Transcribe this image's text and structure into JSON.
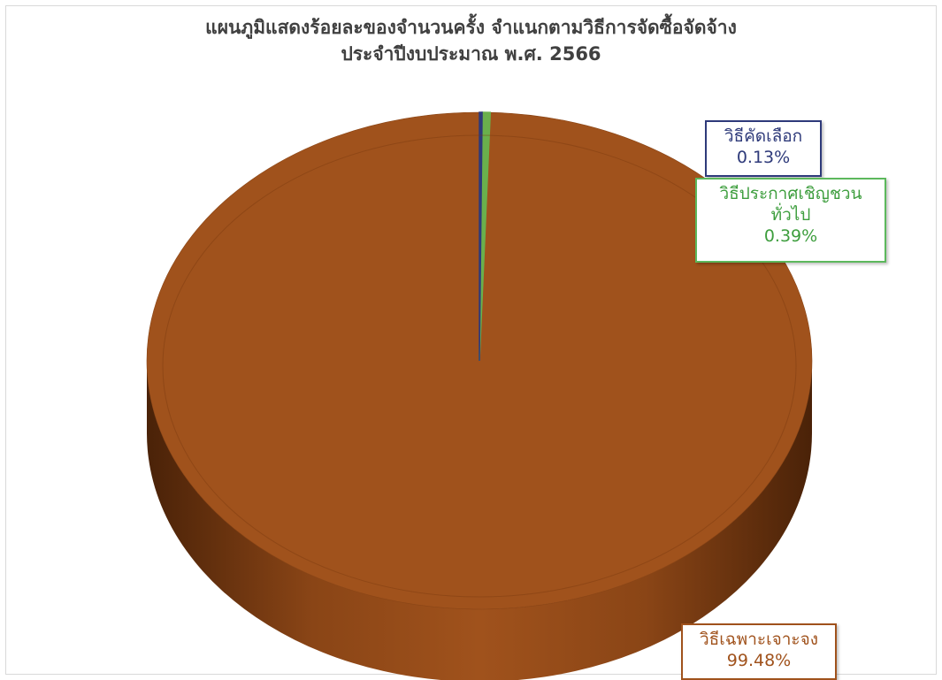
{
  "title_lines": [
    "แผนภูมิแสดงร้อยละของจำนวนครั้ง จำแนกตามวิธีการจัดซื้อจัดจ้าง",
    "ประจำปีงบประมาณ พ.ศ. 2566"
  ],
  "chart_data": {
    "type": "pie",
    "title": "แผนภูมิแสดงร้อยละของจำนวนครั้ง จำแนกตามวิธีการจัดซื้อจัดจ้าง ประจำปีงบประมาณ พ.ศ. 2566",
    "style": "3d",
    "slices": [
      {
        "label": "วิธีคัดเลือก",
        "value": 0.13,
        "display": "0.13%",
        "color": "#2e3a7a"
      },
      {
        "label": "วิธีประกาศเชิญชวนทั่วไป",
        "value": 0.39,
        "display": "0.39%",
        "color": "#6ab04c"
      },
      {
        "label": "วิธีเฉพาะเจาะจง",
        "value": 99.48,
        "display": "99.48%",
        "color": "#a0521c"
      }
    ],
    "legend": "none"
  },
  "labels": {
    "select": {
      "line1": "วิธีคัดเลือก",
      "line2": "0.13%"
    },
    "open": {
      "line1": "วิธีประกาศเชิญชวน",
      "line2": "ทั่วไป",
      "line3": "0.39%"
    },
    "specific": {
      "line1": "วิธีเฉพาะเจาะจง",
      "line2": "99.48%"
    }
  }
}
